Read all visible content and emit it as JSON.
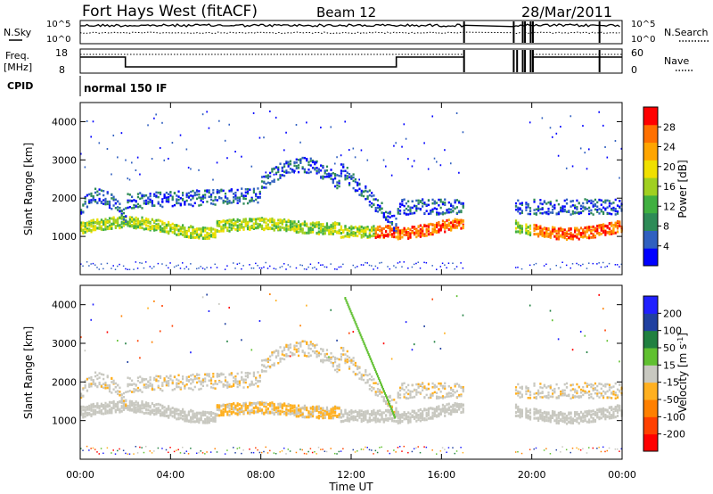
{
  "header": {
    "title": "Fort Hays West (fitACF)",
    "beam": "Beam 12",
    "date": "28/Mar/2011"
  },
  "noise_panel": {
    "left_label": "N.Sky",
    "left_ticks": [
      "10^5",
      "10^0"
    ],
    "right_label": "N.Search",
    "right_ticks": [
      "10^5",
      "10^0"
    ]
  },
  "freq_panel": {
    "left_label_1": "Freq.",
    "left_label_2": "[MHz]",
    "left_ticks": [
      "18",
      "8"
    ],
    "right_label": "Nave",
    "right_ticks": [
      "60",
      "0"
    ]
  },
  "cpid": {
    "label": "CPID",
    "value": "normal 150 IF"
  },
  "colors": {
    "scale_power": [
      "#0000ff",
      "#3060c0",
      "#2e8b57",
      "#40b040",
      "#a0d020",
      "#f0e000",
      "#ffa500",
      "#ff7000",
      "#ff0000"
    ],
    "scale_velocity": [
      "#ff0000",
      "#ff4000",
      "#ff8000",
      "#ffb020",
      "#c8c8c0",
      "#60c030",
      "#208040",
      "#2040a0",
      "#2020ff"
    ],
    "ground_scatter": "#b0b0b0"
  },
  "chart_data": [
    {
      "type": "heatmap",
      "title": "",
      "ylabel": "Slant Range [km]",
      "xlabel": "",
      "ylim": [
        0,
        4500
      ],
      "yticks": [
        "1000",
        "2000",
        "3000",
        "4000"
      ],
      "colorbar": {
        "label": "Power [dB]",
        "ticks": [
          "4",
          "8",
          "12",
          "16",
          "20",
          "24",
          "28"
        ],
        "range": [
          0,
          30
        ]
      },
      "data_gaps_hours": [
        [
          17.0,
          19.2
        ],
        [
          19.6,
          19.7
        ],
        [
          19.95,
          20.05
        ]
      ]
    },
    {
      "type": "heatmap",
      "title": "",
      "ylabel": "Slant Range [km]",
      "xlabel": "Time UT",
      "ylim": [
        0,
        4500
      ],
      "yticks": [
        "1000",
        "2000",
        "3000",
        "4000"
      ],
      "xticks": [
        "00:00",
        "04:00",
        "08:00",
        "12:00",
        "16:00",
        "20:00",
        "00:00"
      ],
      "colorbar": {
        "label": "Velocity [m s-1]",
        "ticks": [
          "200",
          "100",
          "50",
          "15",
          "-15",
          "-50",
          "-100",
          "-200"
        ]
      }
    }
  ]
}
